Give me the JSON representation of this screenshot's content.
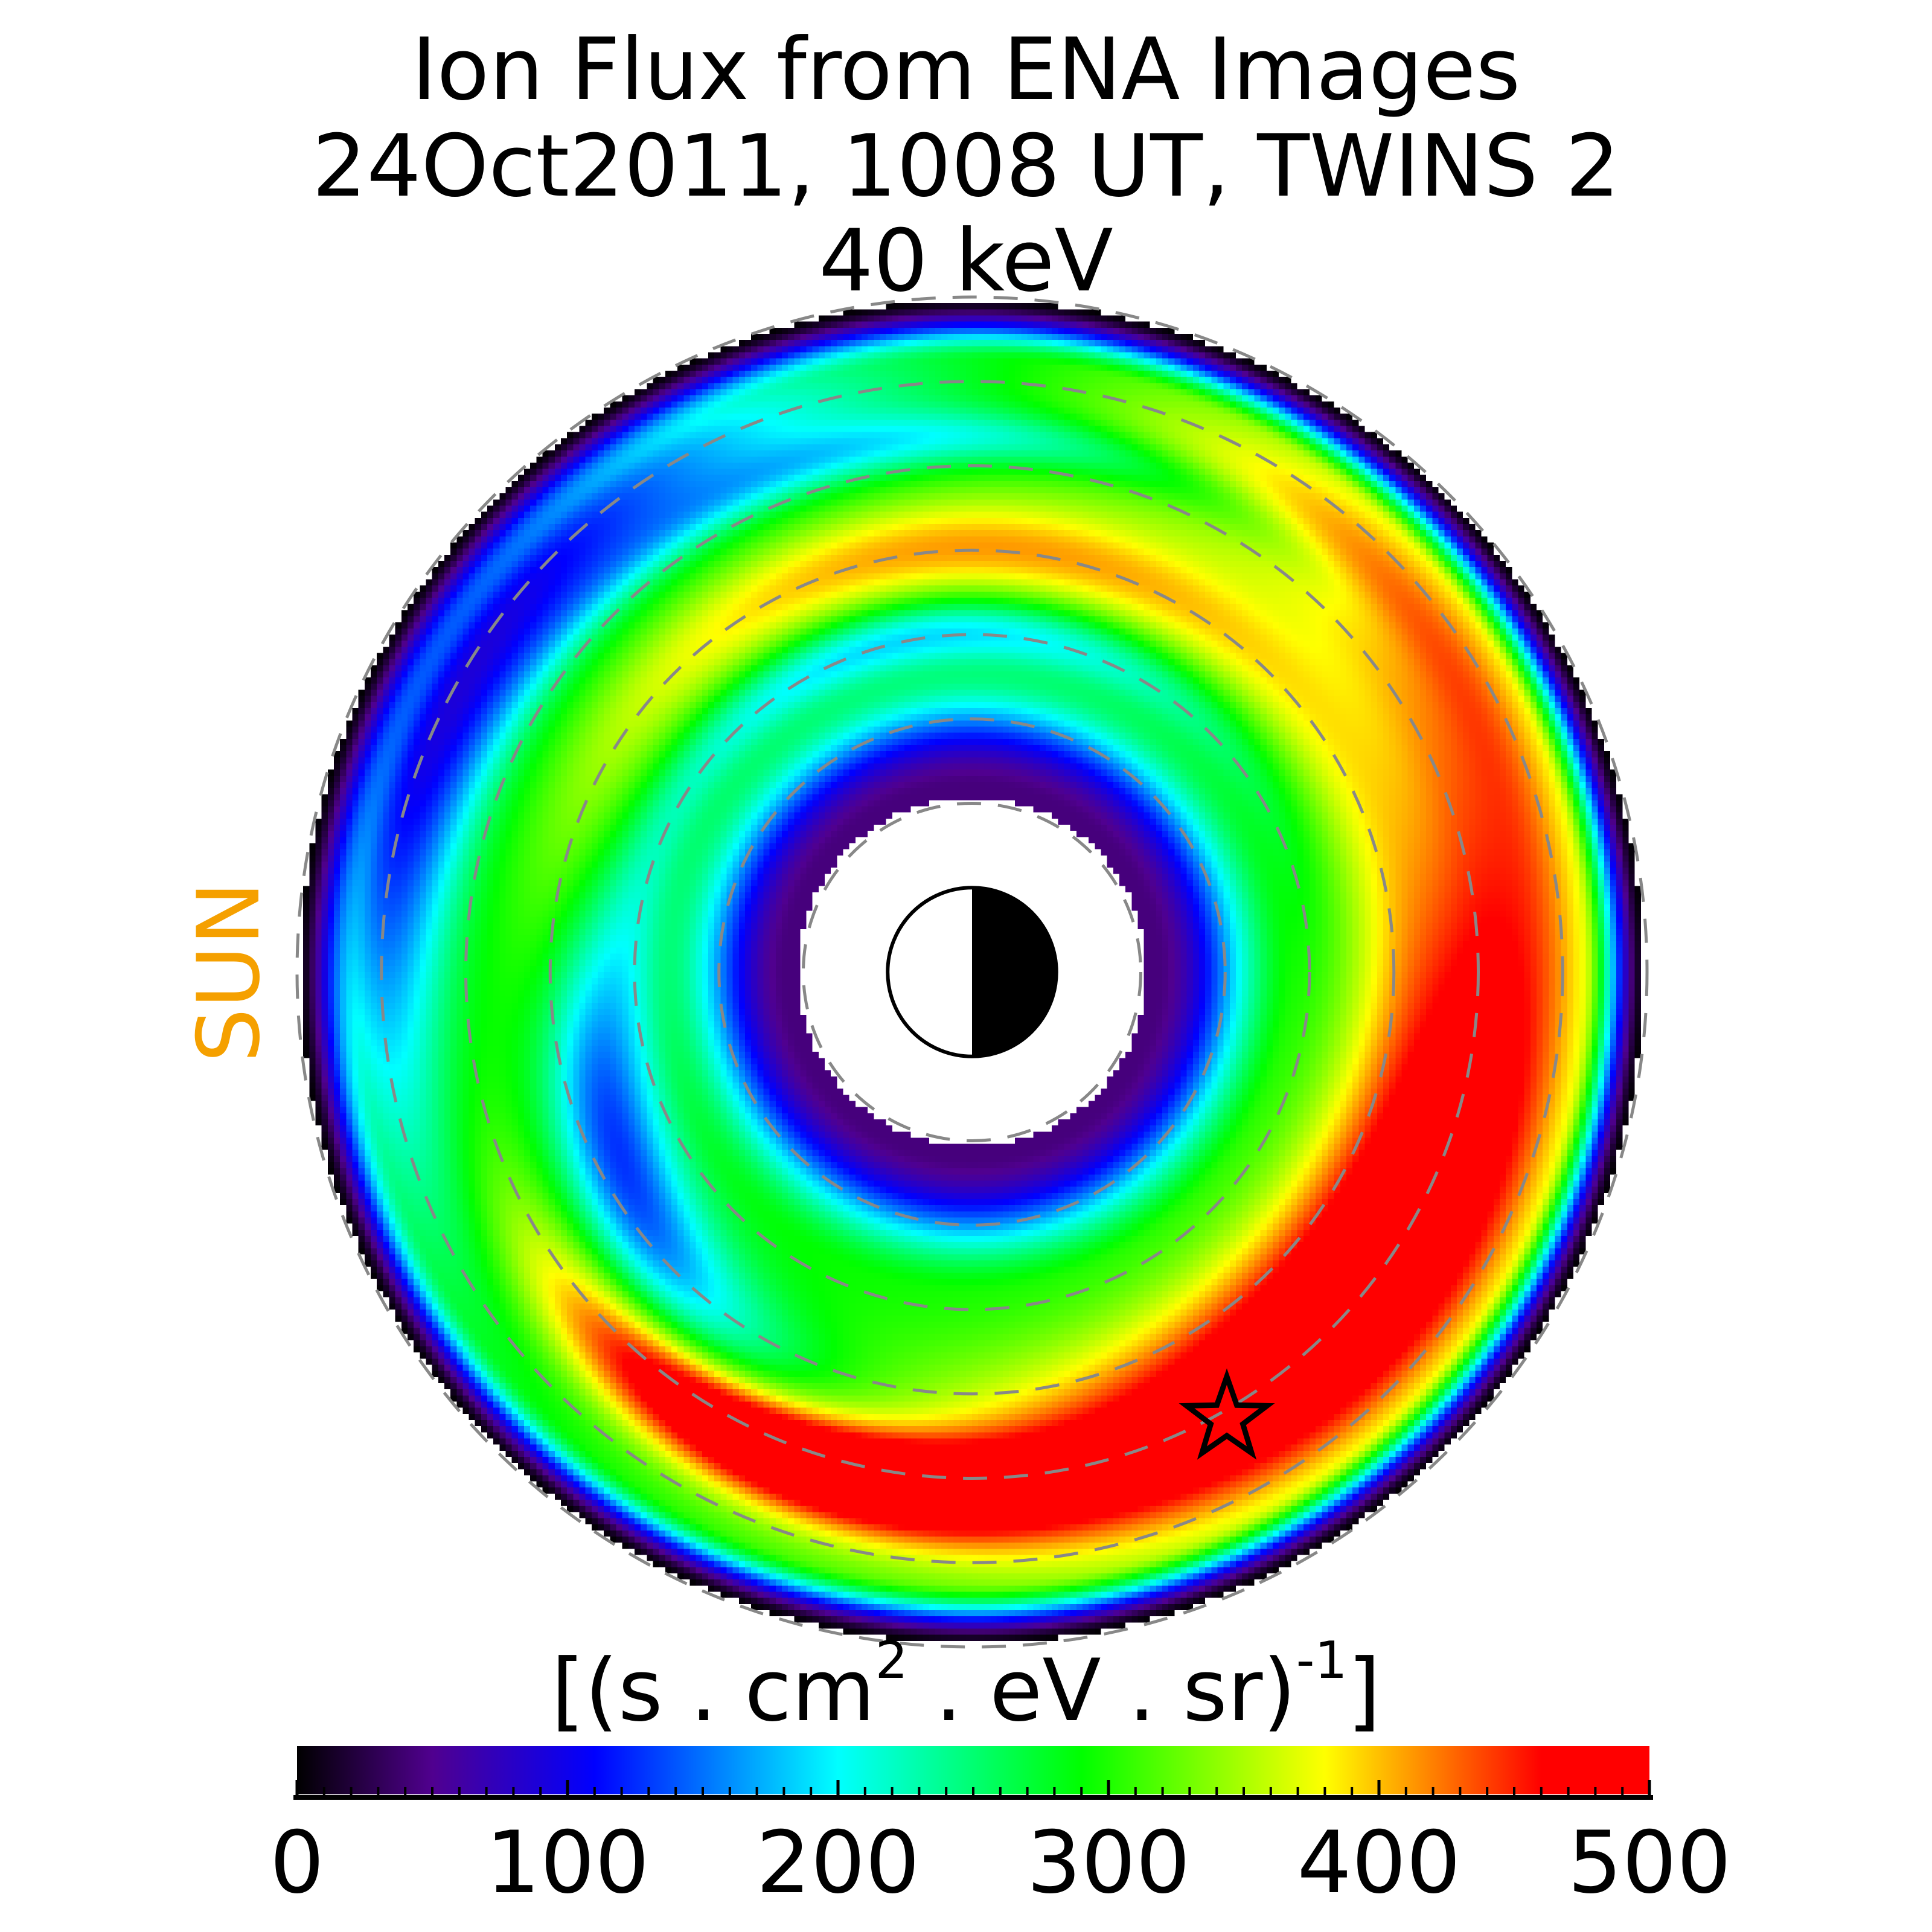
{
  "chart_data": {
    "type": "heatmap",
    "title": [
      "Ion Flux from  ENA Images",
      "24Oct2011, 1008 UT,  TWINS 2",
      "40 keV"
    ],
    "side_label": "SUN",
    "side_label_color": "#f5a000",
    "colorbar": {
      "label_parts": [
        "[(s . cm",
        "2",
        " . eV . sr)",
        "-1",
        "]"
      ],
      "range": [
        0,
        500
      ],
      "ticks": [
        "0",
        "100",
        "200",
        "300",
        "400",
        "500"
      ],
      "tick_values": [
        0,
        100,
        200,
        300,
        400,
        500
      ],
      "minor_tick_step": 10,
      "colormap": [
        {
          "v": 0,
          "c": "#000000"
        },
        {
          "v": 50,
          "c": "#50008f"
        },
        {
          "v": 110,
          "c": "#0000ff"
        },
        {
          "v": 200,
          "c": "#00ffff"
        },
        {
          "v": 290,
          "c": "#00ff00"
        },
        {
          "v": 380,
          "c": "#ffff00"
        },
        {
          "v": 460,
          "c": "#ff0000"
        },
        {
          "v": 500,
          "c": "#ff0000"
        }
      ]
    },
    "radial_range_RE": [
      2,
      8
    ],
    "dashed_circles_RE": [
      2,
      3,
      4,
      5,
      6,
      7,
      8
    ],
    "grid_color": "#888888",
    "satellite_marker": "star"
  }
}
